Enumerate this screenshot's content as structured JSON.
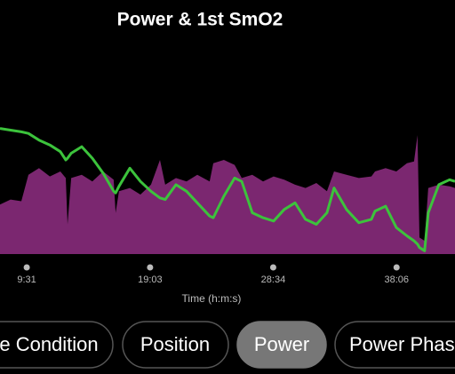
{
  "chart_data": {
    "type": "area-line",
    "title": "Power & 1st SmO2",
    "x_label": "Time (h:m:s)",
    "xlim": [
      447,
      2557
    ],
    "ylim": [
      0,
      100
    ],
    "xticks": [
      {
        "value": 571,
        "label": "9:31"
      },
      {
        "value": 1143,
        "label": "19:03"
      },
      {
        "value": 1714,
        "label": "28:34"
      },
      {
        "value": 2286,
        "label": "38:06"
      }
    ],
    "x": [
      447,
      496,
      546,
      579,
      628,
      678,
      727,
      752,
      760,
      777,
      826,
      875,
      925,
      974,
      983,
      999,
      1049,
      1098,
      1147,
      1189,
      1213,
      1263,
      1312,
      1362,
      1419,
      1436,
      1485,
      1535,
      1568,
      1617,
      1667,
      1716,
      1765,
      1815,
      1864,
      1914,
      1963,
      1996,
      2054,
      2111,
      2169,
      2186,
      2235,
      2285,
      2334,
      2367,
      2383,
      2392,
      2416,
      2433,
      2482,
      2532,
      2557
    ],
    "series": [
      {
        "kind": "area",
        "color": "#7b2770",
        "values": [
          30,
          33,
          32,
          48,
          52,
          47,
          50,
          46,
          18,
          46,
          48,
          44,
          50,
          45,
          25,
          38,
          40,
          36,
          42,
          57,
          42,
          46,
          44,
          48,
          44,
          55,
          57,
          54,
          46,
          48,
          44,
          47,
          45,
          42,
          40,
          43,
          38,
          50,
          48,
          46,
          47,
          50,
          52,
          50,
          55,
          56,
          72,
          10,
          8,
          40,
          42,
          41,
          40
        ]
      },
      {
        "kind": "line",
        "color": "#3cc33c",
        "values": [
          76,
          75,
          74,
          73,
          69,
          66,
          62,
          57,
          58,
          61,
          65,
          58,
          49,
          38,
          37,
          41,
          52,
          44,
          38,
          34,
          33,
          42,
          38,
          31,
          23,
          22,
          35,
          46,
          44,
          25,
          22,
          20,
          27,
          31,
          21,
          18,
          25,
          40,
          27,
          19,
          21,
          26,
          29,
          16,
          11,
          8,
          6,
          4,
          2,
          25,
          42,
          45,
          44
        ]
      }
    ]
  },
  "tabs": [
    {
      "label": "e Condition",
      "selected": false
    },
    {
      "label": "Position",
      "selected": false
    },
    {
      "label": "Power",
      "selected": true
    },
    {
      "label": "Power Phas",
      "selected": false
    }
  ]
}
